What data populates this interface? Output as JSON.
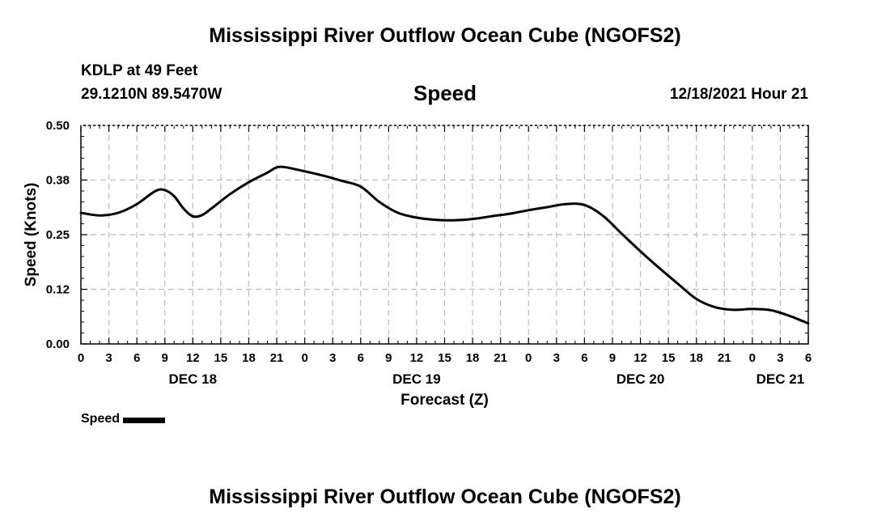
{
  "page": {
    "title_top": "Mississippi River Outflow Ocean Cube (NGOFS2)",
    "title_bottom": "Mississippi River Outflow Ocean Cube (NGOFS2)",
    "station": "KDLP at 49 Feet",
    "coords": "29.1210N  89.5470W",
    "subtitle": "Speed",
    "datetime": "12/18/2021 Hour 21",
    "legend_label": "Speed"
  },
  "chart_data": {
    "type": "line",
    "title": "Speed",
    "xlabel": "Forecast (Z)",
    "ylabel": "Speed (Knots)",
    "x_unit": "hours from 12/18/2021 00Z",
    "xlim": [
      0,
      78
    ],
    "ylim": [
      0,
      0.5
    ],
    "grid": true,
    "legend_position": "bottom-left",
    "yticks": [
      {
        "value": 0.0,
        "label": "0.00"
      },
      {
        "value": 0.125,
        "label": "0.12"
      },
      {
        "value": 0.25,
        "label": "0.25"
      },
      {
        "value": 0.375,
        "label": "0.38"
      },
      {
        "value": 0.5,
        "label": "0.50"
      }
    ],
    "xticks": [
      {
        "value": 0,
        "label": "0"
      },
      {
        "value": 3,
        "label": "3"
      },
      {
        "value": 6,
        "label": "6"
      },
      {
        "value": 9,
        "label": "9"
      },
      {
        "value": 12,
        "label": "12"
      },
      {
        "value": 15,
        "label": "15"
      },
      {
        "value": 18,
        "label": "18"
      },
      {
        "value": 21,
        "label": "21"
      },
      {
        "value": 24,
        "label": "0"
      },
      {
        "value": 27,
        "label": "3"
      },
      {
        "value": 30,
        "label": "6"
      },
      {
        "value": 33,
        "label": "9"
      },
      {
        "value": 36,
        "label": "12"
      },
      {
        "value": 39,
        "label": "15"
      },
      {
        "value": 42,
        "label": "18"
      },
      {
        "value": 45,
        "label": "21"
      },
      {
        "value": 48,
        "label": "0"
      },
      {
        "value": 51,
        "label": "3"
      },
      {
        "value": 54,
        "label": "6"
      },
      {
        "value": 57,
        "label": "9"
      },
      {
        "value": 60,
        "label": "12"
      },
      {
        "value": 63,
        "label": "15"
      },
      {
        "value": 66,
        "label": "18"
      },
      {
        "value": 69,
        "label": "21"
      },
      {
        "value": 72,
        "label": "0"
      },
      {
        "value": 75,
        "label": "3"
      },
      {
        "value": 78,
        "label": "6"
      }
    ],
    "day_labels": [
      {
        "value": 12,
        "label": "DEC 18"
      },
      {
        "value": 36,
        "label": "DEC 19"
      },
      {
        "value": 60,
        "label": "DEC 20"
      },
      {
        "value": 75,
        "label": "DEC 21"
      }
    ],
    "series": [
      {
        "name": "Speed",
        "x": [
          0,
          2,
          4,
          6,
          8,
          9,
          10,
          11,
          12,
          13,
          14,
          16,
          18,
          20,
          21,
          22,
          24,
          26,
          28,
          30,
          32,
          34,
          36,
          38,
          40,
          42,
          44,
          46,
          48,
          50,
          52,
          54,
          56,
          58,
          60,
          62,
          64,
          66,
          68,
          70,
          72,
          74,
          76,
          78
        ],
        "y": [
          0.3,
          0.294,
          0.3,
          0.32,
          0.35,
          0.352,
          0.338,
          0.31,
          0.292,
          0.295,
          0.31,
          0.343,
          0.37,
          0.392,
          0.404,
          0.404,
          0.395,
          0.385,
          0.373,
          0.36,
          0.325,
          0.3,
          0.289,
          0.284,
          0.283,
          0.286,
          0.292,
          0.298,
          0.306,
          0.313,
          0.32,
          0.318,
          0.293,
          0.252,
          0.212,
          0.174,
          0.138,
          0.103,
          0.084,
          0.078,
          0.08,
          0.077,
          0.064,
          0.047
        ]
      }
    ]
  }
}
